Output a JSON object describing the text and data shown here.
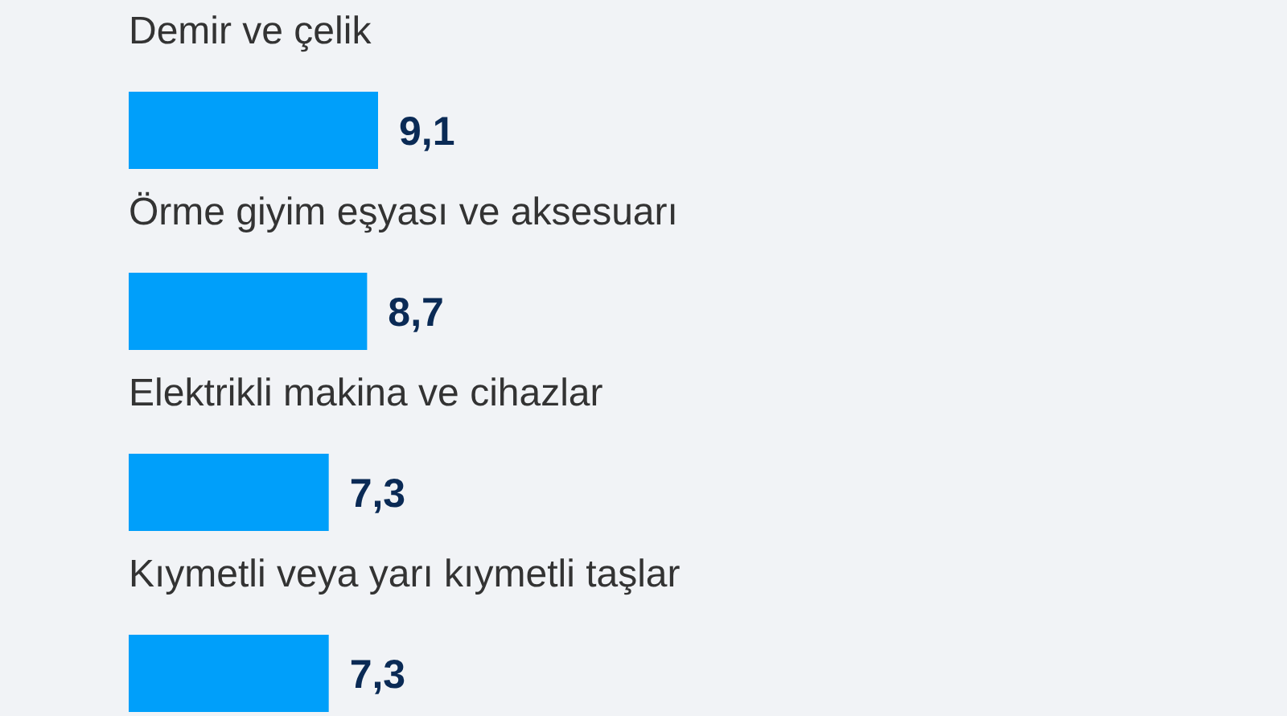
{
  "chart_data": {
    "type": "bar",
    "orientation": "horizontal",
    "categories": [
      "Demir ve çelik",
      "Örme giyim eşyası ve aksesuarı",
      "Elektrikli makina ve cihazlar",
      "Kıymetli veya yarı kıymetli taşlar"
    ],
    "values": [
      9.1,
      8.7,
      7.3,
      7.3
    ],
    "value_labels": [
      "9,1",
      "8,7",
      "7,3",
      "7,3"
    ],
    "color": "#009ffa"
  }
}
